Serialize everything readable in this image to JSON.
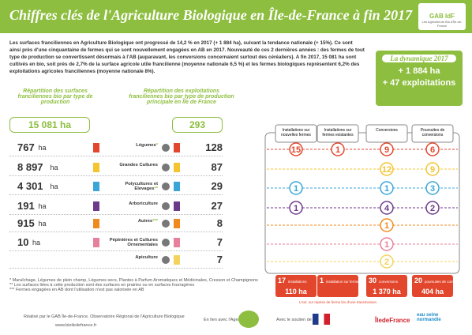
{
  "header": {
    "title": "Chiffres clés de l'Agriculture Biologique en Île-de-France à fin 2017",
    "logo": "GAB IdF",
    "logo_sub": "Les Agriculteurs Bio d'Île-de-France"
  },
  "intro": "Les surfaces franciliennes en Agriculture Biologique ont progressé de 14,2 % en 2017 (+ 1 884 ha), suivant la tendance nationale (+ 15%). Ce sont ainsi près d'une cinquantaine de fermes qui se sont nouvellement engagées en AB en 2017. Nouveauté de ces 2 dernières années : des fermes de tout type de production se convertissent désormais à l'AB (auparavant, les conversions concernaient surtout des céréaliers). A fin 2017, 15 081 ha sont cultivés en bio, soit près de 2,7% de la surface agricole utile francilienne (moyenne nationale 6,5 %) et les fermes biologiques représentent 6,2% des exploitations agricoles franciliennes (moyenne nationale 8%).",
  "dynamique": {
    "title": "La dynamique 2017",
    "items": [
      "+ 1 884 ha",
      "+ 47 exploitations"
    ]
  },
  "surfaces": {
    "title": "Répartition des surfaces franciliennes bio par type de production",
    "total": "15 081 ha",
    "unit": "ha"
  },
  "exploitations": {
    "title": "Répartition des exploitations franciliennes bio par type de production principale en Île de France",
    "total": "293"
  },
  "rows": [
    {
      "label": "Légumes",
      "stars": "*",
      "surface": "767",
      "exploitations": "128",
      "color": "#e2472d"
    },
    {
      "label": "Grandes Cultures",
      "surface": "8 897",
      "exploitations": "87",
      "color": "#f4c431"
    },
    {
      "label": "Polycultures et Elevages",
      "stars": "**",
      "surface": "4 301",
      "exploitations": "29",
      "color": "#3aa6d8"
    },
    {
      "label": "Arboriculture",
      "surface": "191",
      "exploitations": "27",
      "color": "#6d3a8a"
    },
    {
      "label": "Autres",
      "stars": "***",
      "surface": "915",
      "exploitations": "8",
      "color": "#f08a1e"
    },
    {
      "label": "Pépinières et Cultures Ornementales",
      "surface": "10",
      "exploitations": "7",
      "color": "#e7819b"
    },
    {
      "label": "Apiculture",
      "exploitations": "7",
      "color": "#f3d35c"
    }
  ],
  "evolution": {
    "columns": [
      "Installations sur nouvelles fermes",
      "Installations sur fermes existantes",
      "Conversions",
      "Poursuites de conversions"
    ],
    "rows": [
      [
        15,
        1,
        9,
        6
      ],
      [
        null,
        null,
        12,
        9
      ],
      [
        1,
        null,
        1,
        3
      ],
      [
        1,
        null,
        4,
        2
      ],
      [
        null,
        null,
        1,
        null
      ],
      [
        null,
        null,
        1,
        null
      ],
      [
        null,
        null,
        2,
        null
      ]
    ],
    "totals": [
      {
        "count": "17",
        "label": "installations",
        "area": "110 ha"
      },
      {
        "count": "1",
        "label": "installation sur ferme bio déjà existante"
      },
      {
        "count": "30",
        "label": "conversions",
        "area": "1 370 ha"
      },
      {
        "count": "20",
        "label": "poursuites de conversions",
        "area": "404 ha"
      }
    ],
    "note": "L'ext. sur reprise de ferme bio d'une transmission"
  },
  "footnotes": [
    "* Maraîchage, Légumes de plein champ, Légumes secs, Plantes à Parfum Aromatiques et Médicinales, Cresson et Champignons",
    "** Les surfaces liées à cette production sont des surfaces en prairies ou en surfaces fourragères",
    "*** Fermes engagées en AB dont l'utilisation n'est pas valorisée en AB"
  ],
  "footer": {
    "credit": "Réalisé par le GAB Île-de-France, Observatoire Régional de l'Agriculture Biologique",
    "site": "www.bioiledefrance.fr",
    "agence": "En lien avec l'Agence Bio",
    "soutien": "Avec le soutien de :",
    "region": "ÎledeFrance",
    "eau": "eau seine normandie"
  }
}
